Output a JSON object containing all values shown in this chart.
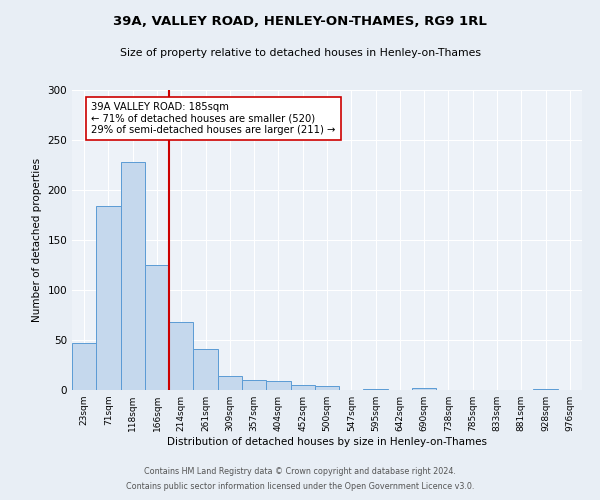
{
  "title": "39A, VALLEY ROAD, HENLEY-ON-THAMES, RG9 1RL",
  "subtitle": "Size of property relative to detached houses in Henley-on-Thames",
  "xlabel": "Distribution of detached houses by size in Henley-on-Thames",
  "ylabel": "Number of detached properties",
  "bar_labels": [
    "23sqm",
    "71sqm",
    "118sqm",
    "166sqm",
    "214sqm",
    "261sqm",
    "309sqm",
    "357sqm",
    "404sqm",
    "452sqm",
    "500sqm",
    "547sqm",
    "595sqm",
    "642sqm",
    "690sqm",
    "738sqm",
    "785sqm",
    "833sqm",
    "881sqm",
    "928sqm",
    "976sqm"
  ],
  "bar_values": [
    47,
    184,
    228,
    125,
    68,
    41,
    14,
    10,
    9,
    5,
    4,
    0,
    1,
    0,
    2,
    0,
    0,
    0,
    0,
    1,
    0
  ],
  "bar_color": "#c5d8ed",
  "bar_edge_color": "#5b9bd5",
  "vline_x": 3.5,
  "vline_color": "#cc0000",
  "annotation_text": "39A VALLEY ROAD: 185sqm\n← 71% of detached houses are smaller (520)\n29% of semi-detached houses are larger (211) →",
  "annotation_box_edge": "#cc0000",
  "ylim": [
    0,
    300
  ],
  "yticks": [
    0,
    50,
    100,
    150,
    200,
    250,
    300
  ],
  "footer_line1": "Contains HM Land Registry data © Crown copyright and database right 2024.",
  "footer_line2": "Contains public sector information licensed under the Open Government Licence v3.0.",
  "bg_color": "#e8eef5",
  "plot_bg_color": "#edf2f8"
}
